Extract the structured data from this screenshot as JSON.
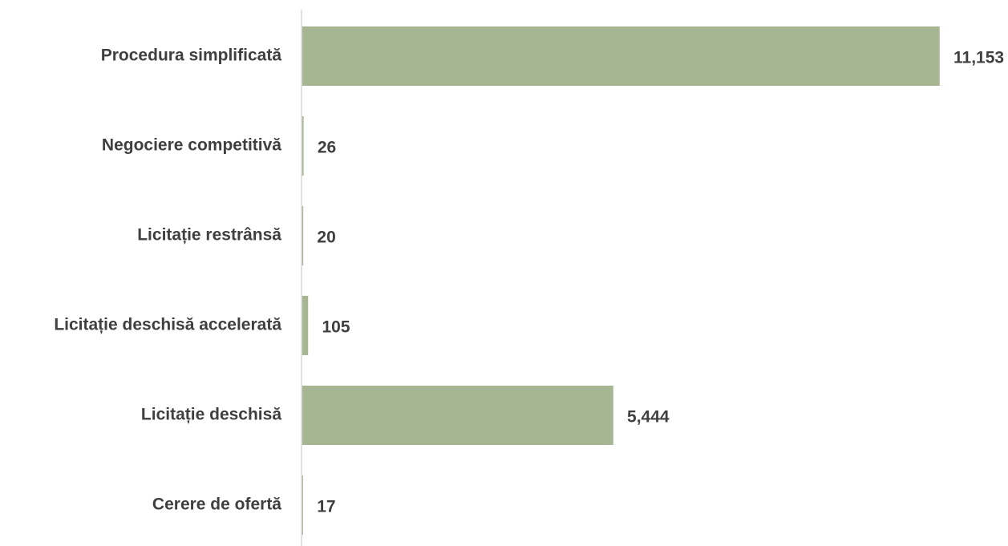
{
  "chart_data": {
    "type": "bar",
    "orientation": "horizontal",
    "categories": [
      "Procedura simplificată",
      "Negociere competitivă",
      "Licitație restrânsă",
      "Licitație deschisă accelerată",
      "Licitație deschisă",
      "Cerere de ofertă"
    ],
    "values": [
      11153,
      26,
      20,
      105,
      5444,
      17
    ],
    "value_labels": [
      "11,153",
      "26",
      "20",
      "105",
      "5,444",
      "17"
    ],
    "title": "",
    "xlabel": "",
    "ylabel": "",
    "xlim": [
      0,
      11153
    ],
    "grid": false,
    "legend": "none",
    "bar_color": "#a6b592",
    "axis_color": "#d9d9d9",
    "text_color": "#3f3f3f"
  }
}
